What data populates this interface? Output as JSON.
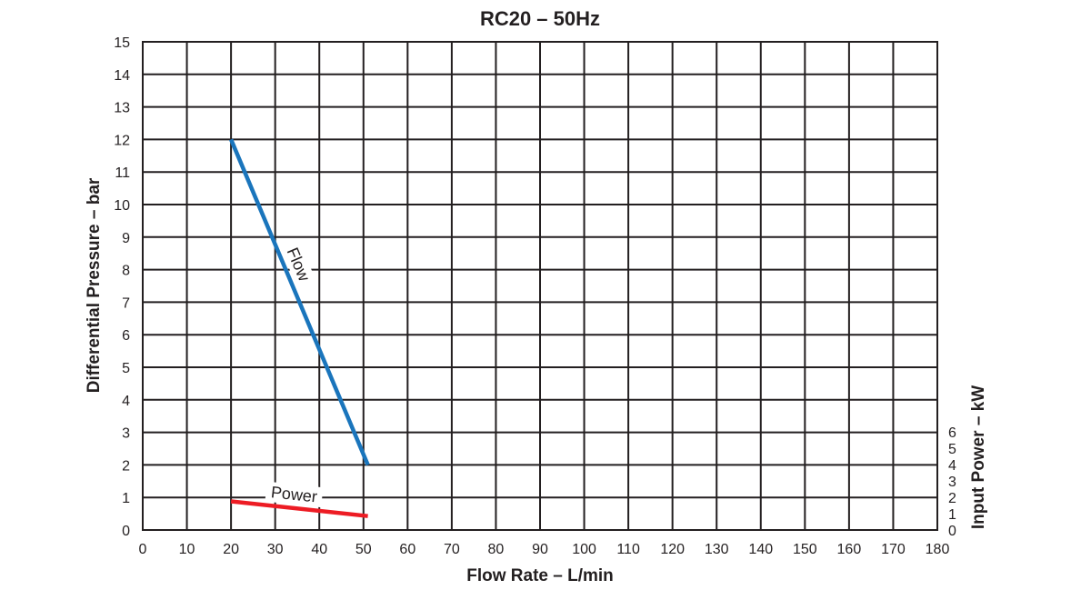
{
  "chart_data": {
    "type": "line",
    "title": "RC20 – 50Hz",
    "xlabel": "Flow Rate – L/min",
    "ylabel": "Differential Pressure – bar",
    "y2label": "Input Power – kW",
    "xlim": [
      0,
      180
    ],
    "ylim": [
      0,
      15
    ],
    "y2lim": [
      0,
      6
    ],
    "x_ticks": [
      "0",
      "10",
      "20",
      "30",
      "40",
      "50",
      "60",
      "70",
      "80",
      "90",
      "100",
      "110",
      "120",
      "130",
      "140",
      "150",
      "160",
      "170",
      "180"
    ],
    "y_ticks": [
      "0",
      "1",
      "2",
      "3",
      "4",
      "5",
      "6",
      "7",
      "8",
      "9",
      "10",
      "11",
      "12",
      "13",
      "14",
      "15"
    ],
    "y2_ticks": [
      "0",
      "1",
      "2",
      "3",
      "4",
      "5",
      "6"
    ],
    "grid": true,
    "series": [
      {
        "name": "Flow",
        "axis": "left",
        "color": "#1a75bc",
        "x": [
          20,
          51
        ],
        "y": [
          12,
          2
        ]
      },
      {
        "name": "Power",
        "axis": "right",
        "color": "#ed1c24",
        "x": [
          20,
          51
        ],
        "y": [
          1.75,
          0.85
        ]
      }
    ]
  }
}
